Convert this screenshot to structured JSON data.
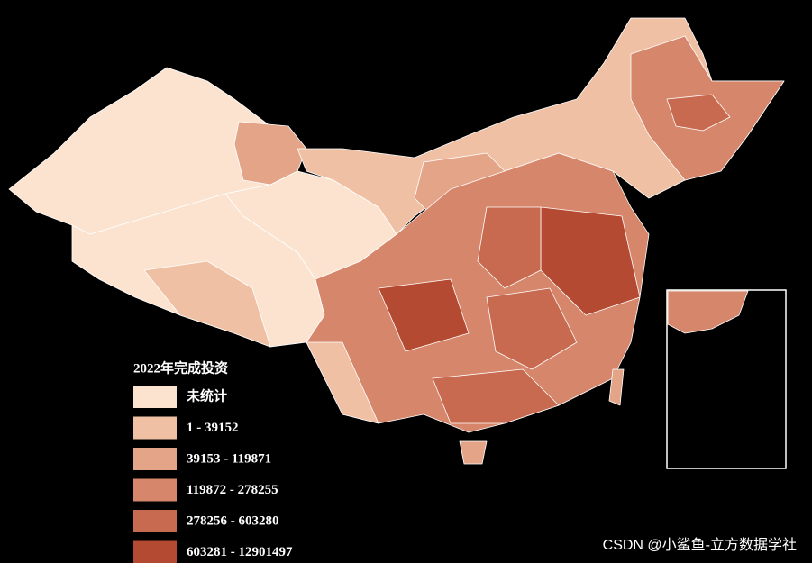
{
  "map": {
    "legend": {
      "title": "2022年完成投资",
      "items": [
        {
          "label": "未统计",
          "color": "#fbe3cf"
        },
        {
          "label": "1 - 39152",
          "color": "#efc0a4"
        },
        {
          "label": "39153 - 119871",
          "color": "#e3a487"
        },
        {
          "label": "119872 - 278255",
          "color": "#d6866a"
        },
        {
          "label": "278256 - 603280",
          "color": "#c86a50"
        },
        {
          "label": "603281 - 12901497",
          "color": "#b34a31"
        }
      ]
    }
  },
  "watermark": "CSDN @小鲨鱼-立方数据学社"
}
